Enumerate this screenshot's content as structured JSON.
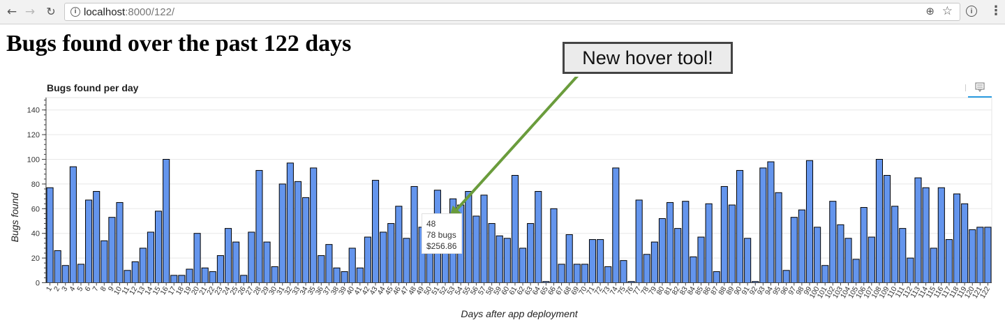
{
  "browser": {
    "url_host": "localhost",
    "url_path": ":8000/122/",
    "icons": [
      "back-arrow-icon",
      "forward-arrow-icon",
      "reload-icon",
      "info-icon",
      "zoom-icon",
      "bookmark-star-icon",
      "extension-icon",
      "menu-icon"
    ]
  },
  "page": {
    "title": "Bugs found over the past 122 days"
  },
  "callout": {
    "text": "New hover tool!",
    "arrow_color": "#6a9c3c"
  },
  "tooltip": {
    "day": "48",
    "bugs": "78 bugs",
    "cost": "$256.86"
  },
  "toolbar": {
    "icon": "hover-tool-icon"
  },
  "chart_data": {
    "type": "bar",
    "title": "Bugs found per day",
    "xlabel": "Days after app deployment",
    "ylabel": "Bugs found",
    "ylim": [
      0,
      150
    ],
    "yticks": [
      0,
      20,
      40,
      60,
      80,
      100,
      120,
      140
    ],
    "grid": true,
    "bar_color": "#6495ed",
    "categories": [
      "1",
      "2",
      "3",
      "4",
      "5",
      "6",
      "7",
      "8",
      "9",
      "10",
      "11",
      "12",
      "13",
      "14",
      "15",
      "16",
      "17",
      "18",
      "19",
      "20",
      "21",
      "22",
      "23",
      "24",
      "25",
      "26",
      "27",
      "28",
      "29",
      "30",
      "31",
      "32",
      "33",
      "34",
      "35",
      "36",
      "37",
      "38",
      "39",
      "40",
      "41",
      "42",
      "43",
      "44",
      "45",
      "46",
      "47",
      "48",
      "49",
      "50",
      "51",
      "52",
      "53",
      "54",
      "55",
      "56",
      "57",
      "58",
      "59",
      "60",
      "61",
      "62",
      "63",
      "64",
      "65",
      "66",
      "67",
      "68",
      "69",
      "70",
      "71",
      "72",
      "73",
      "74",
      "75",
      "76",
      "77",
      "78",
      "79",
      "80",
      "81",
      "82",
      "83",
      "84",
      "85",
      "86",
      "87",
      "88",
      "89",
      "90",
      "91",
      "92",
      "93",
      "94",
      "95",
      "96",
      "97",
      "98",
      "99",
      "100",
      "101",
      "102",
      "103",
      "104",
      "105",
      "106",
      "107",
      "108",
      "109",
      "110",
      "111",
      "112",
      "113",
      "114",
      "115",
      "116",
      "117",
      "118",
      "119",
      "120",
      "121",
      "122"
    ],
    "values": [
      77,
      26,
      14,
      94,
      15,
      67,
      74,
      34,
      53,
      65,
      10,
      17,
      28,
      41,
      58,
      100,
      6,
      6,
      11,
      40,
      12,
      9,
      22,
      44,
      33,
      6,
      41,
      91,
      33,
      13,
      80,
      97,
      82,
      69,
      93,
      22,
      31,
      12,
      9,
      28,
      12,
      37,
      83,
      41,
      48,
      62,
      36,
      78,
      45,
      35,
      75,
      32,
      68,
      63,
      74,
      54,
      71,
      48,
      38,
      36,
      87,
      28,
      48,
      74,
      1,
      60,
      15,
      39,
      15,
      15,
      35,
      35,
      13,
      93,
      18,
      1,
      67,
      23,
      33,
      52,
      65,
      44,
      66,
      21,
      37,
      64,
      9,
      78,
      63,
      91,
      36,
      1,
      93,
      98,
      73,
      10,
      53,
      59,
      99,
      45,
      14,
      66,
      47,
      36,
      19,
      61,
      37,
      100,
      87,
      62,
      44,
      20,
      85,
      77,
      28,
      77,
      35,
      72,
      64,
      43,
      45,
      45
    ]
  }
}
